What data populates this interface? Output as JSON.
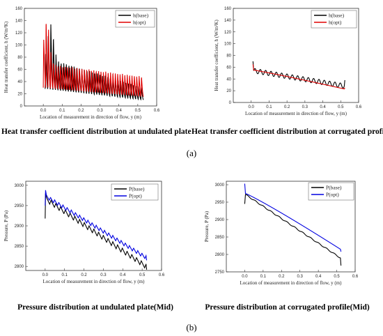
{
  "captions": {
    "a1": "Heat transfer coefficient distribution at undulated plate",
    "a2": "Heat transfer coefficient distribution at corrugated profile",
    "label_a": "(a)",
    "b1": "Pressure distribution at undulated plate(Mid)",
    "b2": "Pressure distribution at corrugated profile(Mid)",
    "label_b": "(b)"
  },
  "chart_data": [
    {
      "id": "a1",
      "type": "line",
      "title": "",
      "xlabel": "Location of measurement in direction of flow, y (m)",
      "ylabel": "Heat transfer coefficient, h (W/m²K)",
      "xlim": [
        -0.1,
        0.6
      ],
      "ylim": [
        0,
        160
      ],
      "xticks": [
        "0.0",
        "0.1",
        "0.2",
        "0.3",
        "0.4",
        "0.5",
        "0.6"
      ],
      "xtick_values": [
        0.0,
        0.1,
        0.2,
        0.3,
        0.4,
        0.5,
        0.6
      ],
      "yticks": [
        "0",
        "20",
        "40",
        "60",
        "80",
        "100",
        "120",
        "140",
        "160"
      ],
      "ytick_values": [
        0,
        20,
        40,
        60,
        80,
        100,
        120,
        140,
        160
      ],
      "legend_position": "top-right",
      "series": [
        {
          "name": "h(base)",
          "color": "#000000",
          "shape": "oscillating",
          "x_start": 0.01,
          "x_end": 0.53,
          "cycles": 38,
          "low_start": 28,
          "low_end": 10,
          "high_start": 80,
          "high_end": 30,
          "peak_x": 0.04,
          "peak_y": 137
        },
        {
          "name": "h(opt)",
          "color": "#e00000",
          "shape": "oscillating",
          "x_start": 0.0,
          "x_end": 0.53,
          "cycles": 42,
          "low_start": 30,
          "low_end": 15,
          "high_start": 70,
          "high_end": 48,
          "peak_x": 0.018,
          "peak_y": 143
        }
      ]
    },
    {
      "id": "a2",
      "type": "line",
      "title": "",
      "xlabel": "Location of measurement in direction of flow, y (m)",
      "ylabel": "Heat transfer coefficient, h (W/m²K)",
      "xlim": [
        -0.1,
        0.6
      ],
      "ylim": [
        0,
        160
      ],
      "xticks": [
        "0.0",
        "0.1",
        "0.2",
        "0.3",
        "0.4",
        "0.5",
        "0.6"
      ],
      "xtick_values": [
        0.0,
        0.1,
        0.2,
        0.3,
        0.4,
        0.5,
        0.6
      ],
      "yticks": [
        "0",
        "20",
        "40",
        "60",
        "80",
        "100",
        "120",
        "140",
        "160"
      ],
      "ytick_values": [
        0,
        20,
        40,
        60,
        80,
        100,
        120,
        140,
        160
      ],
      "legend_position": "top-right",
      "series": [
        {
          "name": "h(base)",
          "color": "#000000",
          "shape": "wavy-decline",
          "x_start": 0.01,
          "x_end": 0.52,
          "cycles": 17,
          "amp": 4,
          "y_start": 54,
          "y_end": 28,
          "spike_start": 70,
          "spike_end": 38
        },
        {
          "name": "h(opt)",
          "color": "#e00000",
          "shape": "smooth-decline",
          "x_start": 0.01,
          "x_end": 0.52,
          "y_start": 55,
          "y_end": 23,
          "spike_start": 65,
          "spike_end": 25
        }
      ]
    },
    {
      "id": "b1",
      "type": "line",
      "title": "",
      "xlabel": "Location of measurement in direction of flow, y (m)",
      "ylabel": "Pressure, P (Pa)",
      "xlim": [
        -0.1,
        0.6
      ],
      "ylim": [
        2790,
        3010
      ],
      "xticks": [
        "0.0",
        "0.1",
        "0.2",
        "0.3",
        "0.4",
        "0.5",
        "0.6"
      ],
      "xtick_values": [
        0.0,
        0.1,
        0.2,
        0.3,
        0.4,
        0.5,
        0.6
      ],
      "yticks": [
        "2800",
        "2850",
        "2900",
        "2950",
        "3000"
      ],
      "ytick_values": [
        2800,
        2850,
        2900,
        2950,
        3000
      ],
      "legend_position": "top-right",
      "series": [
        {
          "name": "P(base)",
          "color": "#000000",
          "shape": "sawtooth-decline",
          "x_start": 0.0,
          "x_end": 0.52,
          "cycles": 21,
          "amp": 12,
          "y_start": 2965,
          "y_end": 2800,
          "spike_low": 2918,
          "spike_high": 2980,
          "end_y": 2792
        },
        {
          "name": "P(opt)",
          "color": "#0000e0",
          "shape": "sawtooth-decline",
          "x_start": 0.0,
          "x_end": 0.52,
          "cycles": 24,
          "amp": 9,
          "y_start": 2972,
          "y_end": 2822,
          "spike_low": 2950,
          "spike_high": 2988,
          "end_y": 2815
        }
      ]
    },
    {
      "id": "b2",
      "type": "line",
      "title": "",
      "xlabel": "Location of measurement in direction of flow, y (m)",
      "ylabel": "Pressure, P (Pa)",
      "xlim": [
        -0.1,
        0.6
      ],
      "ylim": [
        2750,
        3010
      ],
      "xticks": [
        "0.0",
        "0.1",
        "0.2",
        "0.3",
        "0.4",
        "0.5",
        "0.6"
      ],
      "xtick_values": [
        0.0,
        0.1,
        0.2,
        0.3,
        0.4,
        0.5,
        0.6
      ],
      "yticks": [
        "2750",
        "2800",
        "2850",
        "2900",
        "2950",
        "3000"
      ],
      "ytick_values": [
        2750,
        2800,
        2850,
        2900,
        2950,
        3000
      ],
      "legend_position": "top-right",
      "series": [
        {
          "name": "P(base)",
          "color": "#000000",
          "shape": "wavy-decline",
          "x_start": 0.0,
          "x_end": 0.52,
          "cycles": 12,
          "amp": 1.5,
          "y_start": 2972,
          "y_end": 2790,
          "spike_start": 2945,
          "spike_end": 2768
        },
        {
          "name": "P(opt)",
          "color": "#0000e0",
          "shape": "smooth-decline",
          "x_start": 0.0,
          "x_end": 0.52,
          "y_start": 2975,
          "y_end": 2815,
          "spike_start": 3003,
          "spike_end": 2808
        }
      ]
    }
  ]
}
